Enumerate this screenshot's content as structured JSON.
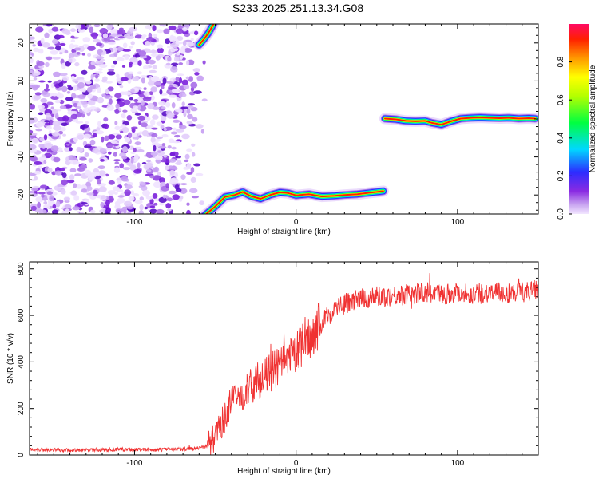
{
  "title": "S233.2025.251.13.34.G08",
  "chart_data": [
    {
      "type": "heatmap",
      "xlabel": "Height of straight line (km)",
      "ylabel": "Frequency (Hz)",
      "xlim": [
        -165,
        150
      ],
      "ylim": [
        -25,
        25
      ],
      "xticks": [
        -100,
        0,
        100
      ],
      "yticks": [
        -20,
        -10,
        0,
        10,
        20
      ],
      "colorbar": {
        "label": "Normalized spectral amplitude",
        "range": [
          0,
          1
        ],
        "ticks": [
          0.0,
          0.2,
          0.4,
          0.6,
          0.8
        ],
        "tick_labels": [
          "0.0",
          "0.2",
          "0.4",
          "0.6",
          "0.8"
        ]
      },
      "signal_ridges": [
        {
          "x": [
            -57,
            -50,
            -44,
            -38,
            -33,
            -28,
            -22,
            -16,
            -10,
            -5,
            0,
            8,
            16,
            24,
            30,
            38,
            44,
            50,
            54
          ],
          "y": [
            -25.5,
            -23,
            -20.5,
            -20,
            -19.2,
            -20.3,
            -21,
            -20,
            -19.3,
            -19.5,
            -20.1,
            -19.8,
            -20.4,
            -20.2,
            -20,
            -19.8,
            -19.5,
            -19.2,
            -19
          ]
        },
        {
          "x": [
            55,
            62,
            68,
            74,
            80,
            84,
            90,
            96,
            102,
            108,
            114,
            120,
            126,
            132,
            138,
            144,
            148
          ],
          "y": [
            0.1,
            -0.1,
            -0.5,
            -0.6,
            -0.5,
            -1.0,
            -1.5,
            -0.6,
            0.1,
            0.3,
            0.4,
            0.3,
            0.2,
            0.3,
            0.1,
            0.2,
            0.1
          ]
        },
        {
          "x": [
            -60,
            -57,
            -54,
            -51
          ],
          "y": [
            19.5,
            21,
            22.8,
            25
          ]
        }
      ],
      "noise_region_x": [
        -165,
        -55
      ]
    },
    {
      "type": "line",
      "xlabel": "Height of straight line (km)",
      "ylabel": "SNR (10 * v/v)",
      "xlim": [
        -165,
        150
      ],
      "ylim": [
        0,
        830
      ],
      "xticks": [
        -100,
        0,
        100
      ],
      "yticks": [
        0,
        200,
        400,
        600,
        800
      ],
      "color": "#f03232",
      "x": [
        -165,
        -150,
        -135,
        -120,
        -105,
        -90,
        -75,
        -62,
        -55,
        -50,
        -45,
        -40,
        -35,
        -30,
        -25,
        -20,
        -15,
        -10,
        -5,
        0,
        5,
        10,
        15,
        20,
        25,
        30,
        40,
        50,
        60,
        70,
        80,
        90,
        100,
        110,
        120,
        130,
        140,
        150
      ],
      "y": [
        25,
        22,
        20,
        22,
        24,
        22,
        25,
        28,
        40,
        80,
        150,
        230,
        250,
        280,
        320,
        330,
        360,
        380,
        400,
        440,
        480,
        520,
        560,
        600,
        630,
        650,
        670,
        680,
        685,
        690,
        700,
        690,
        700,
        690,
        700,
        695,
        700,
        710
      ]
    }
  ]
}
